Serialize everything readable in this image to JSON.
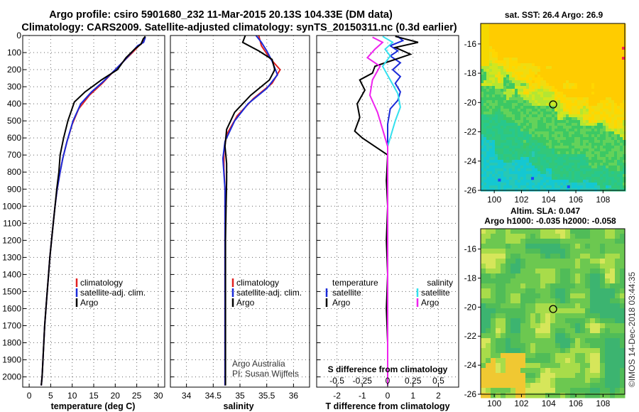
{
  "header": {
    "title_line1": "Argo profile: csiro 5901680_232 11-Mar-2015 20.13S 104.33E (DM data)",
    "title_line2": "Climatology: CARS2009. Satellite-adjusted climatology: synTS_20150311.nc (0.3d earlier)"
  },
  "colors": {
    "climatology": "#e02020",
    "satellite_adj": "#1a2ad8",
    "argo": "#000000",
    "s_satellite": "#33e0ee",
    "s_argo": "#ee22ee"
  },
  "chart_data": [
    {
      "id": "temperature",
      "type": "line",
      "xlabel": "temperature (deg C)",
      "ylabel": "",
      "xlim": [
        -1.5,
        31.5
      ],
      "ylim": [
        2060,
        0
      ],
      "xticks": [
        0,
        5,
        10,
        15,
        20,
        25,
        30
      ],
      "yticks": [
        0,
        100,
        200,
        300,
        400,
        500,
        600,
        700,
        800,
        900,
        1000,
        1100,
        1200,
        1300,
        1400,
        1500,
        1600,
        1700,
        1800,
        1900,
        2000
      ],
      "grid": true,
      "legend": [
        "climatology",
        "satellite-adj. clim.",
        "Argo"
      ],
      "legend_position": "lower-right",
      "series": [
        {
          "name": "climatology",
          "color": "#e02020",
          "points": [
            [
              27,
              10
            ],
            [
              26.5,
              40
            ],
            [
              25.5,
              60
            ],
            [
              24,
              100
            ],
            [
              22,
              150
            ],
            [
              20,
              200
            ],
            [
              17,
              280
            ],
            [
              14,
              350
            ],
            [
              11.5,
              430
            ],
            [
              10,
              520
            ],
            [
              8.8,
              620
            ],
            [
              7.8,
              720
            ],
            [
              7.2,
              800
            ],
            [
              6.5,
              900
            ],
            [
              6,
              1000
            ],
            [
              5.6,
              1100
            ],
            [
              5.2,
              1200
            ],
            [
              4.8,
              1300
            ],
            [
              4.5,
              1400
            ],
            [
              4.2,
              1500
            ],
            [
              3.9,
              1600
            ],
            [
              3.6,
              1700
            ],
            [
              3.4,
              1800
            ],
            [
              3.2,
              1900
            ],
            [
              3,
              2000
            ],
            [
              2.8,
              2050
            ]
          ]
        },
        {
          "name": "satellite-adj. clim.",
          "color": "#1a2ad8",
          "points": [
            [
              27,
              10
            ],
            [
              26.6,
              40
            ],
            [
              25.2,
              60
            ],
            [
              23.8,
              100
            ],
            [
              22,
              150
            ],
            [
              20,
              200
            ],
            [
              17.2,
              270
            ],
            [
              14.5,
              330
            ],
            [
              12,
              400
            ],
            [
              10.2,
              500
            ],
            [
              8.8,
              620
            ],
            [
              7.8,
              720
            ],
            [
              7.2,
              800
            ],
            [
              6.5,
              900
            ],
            [
              6,
              1000
            ],
            [
              5.6,
              1100
            ],
            [
              5.2,
              1200
            ],
            [
              4.8,
              1300
            ],
            [
              4.5,
              1400
            ],
            [
              4.2,
              1500
            ],
            [
              3.9,
              1600
            ],
            [
              3.6,
              1700
            ],
            [
              3.4,
              1800
            ],
            [
              3.2,
              1900
            ],
            [
              3,
              2000
            ],
            [
              2.8,
              2050
            ]
          ]
        },
        {
          "name": "Argo",
          "color": "#000000",
          "points": [
            [
              27,
              5
            ],
            [
              26.5,
              20
            ],
            [
              26,
              50
            ],
            [
              24.5,
              80
            ],
            [
              22.5,
              130
            ],
            [
              20.5,
              200
            ],
            [
              16.8,
              260
            ],
            [
              13,
              330
            ],
            [
              10.5,
              390
            ],
            [
              9,
              500
            ],
            [
              8,
              600
            ],
            [
              7.2,
              700
            ],
            [
              6.9,
              800
            ],
            [
              6.4,
              900
            ],
            [
              6,
              1000
            ],
            [
              5.6,
              1100
            ],
            [
              5.2,
              1200
            ],
            [
              4.8,
              1300
            ],
            [
              4.5,
              1400
            ],
            [
              4.2,
              1500
            ],
            [
              3.9,
              1600
            ],
            [
              3.6,
              1700
            ],
            [
              3.4,
              1800
            ],
            [
              3.2,
              1900
            ],
            [
              3,
              2000
            ],
            [
              2.8,
              2050
            ]
          ]
        }
      ]
    },
    {
      "id": "salinity",
      "type": "line",
      "xlabel": "salinity",
      "xlim": [
        33.7,
        36.3
      ],
      "ylim": [
        2060,
        0
      ],
      "xticks": [
        34,
        34.5,
        35,
        35.5,
        36
      ],
      "grid": true,
      "legend": [
        "climatology",
        "satellite-adj. clim.",
        "Argo"
      ],
      "legend_position": "lower-right",
      "series": [
        {
          "name": "climatology",
          "color": "#e02020",
          "points": [
            [
              35.35,
              0
            ],
            [
              35.4,
              60
            ],
            [
              35.55,
              130
            ],
            [
              35.75,
              200
            ],
            [
              35.6,
              280
            ],
            [
              35.25,
              370
            ],
            [
              34.95,
              470
            ],
            [
              34.75,
              580
            ],
            [
              34.7,
              680
            ],
            [
              34.7,
              780
            ],
            [
              34.72,
              900
            ],
            [
              34.72,
              1000
            ],
            [
              34.72,
              1100
            ],
            [
              34.72,
              1200
            ],
            [
              34.72,
              1300
            ],
            [
              34.72,
              1400
            ],
            [
              34.72,
              1500
            ],
            [
              34.72,
              1600
            ],
            [
              34.72,
              1700
            ],
            [
              34.72,
              1800
            ],
            [
              34.72,
              1900
            ],
            [
              34.72,
              2000
            ],
            [
              34.72,
              2050
            ]
          ]
        },
        {
          "name": "satellite-adj. clim.",
          "color": "#1a2ad8",
          "points": [
            [
              35.3,
              0
            ],
            [
              35.4,
              40
            ],
            [
              35.5,
              90
            ],
            [
              35.6,
              150
            ],
            [
              35.7,
              230
            ],
            [
              35.5,
              310
            ],
            [
              35.15,
              400
            ],
            [
              34.9,
              500
            ],
            [
              34.72,
              620
            ],
            [
              34.68,
              720
            ],
            [
              34.72,
              900
            ],
            [
              34.72,
              1000
            ],
            [
              34.72,
              1100
            ],
            [
              34.72,
              1200
            ],
            [
              34.72,
              1300
            ],
            [
              34.72,
              1400
            ],
            [
              34.72,
              1500
            ],
            [
              34.72,
              1600
            ],
            [
              34.72,
              1700
            ],
            [
              34.72,
              1800
            ],
            [
              34.72,
              1900
            ],
            [
              34.72,
              2000
            ],
            [
              34.72,
              2050
            ]
          ]
        },
        {
          "name": "Argo",
          "color": "#000000",
          "points": [
            [
              35.1,
              0
            ],
            [
              35.05,
              40
            ],
            [
              35.35,
              90
            ],
            [
              35.6,
              140
            ],
            [
              35.65,
              200
            ],
            [
              35.55,
              260
            ],
            [
              35.2,
              350
            ],
            [
              34.9,
              450
            ],
            [
              34.75,
              550
            ],
            [
              34.72,
              650
            ],
            [
              34.75,
              750
            ],
            [
              34.75,
              850
            ],
            [
              34.74,
              1000
            ],
            [
              34.73,
              1200
            ],
            [
              34.73,
              1400
            ],
            [
              34.73,
              1600
            ],
            [
              34.73,
              1800
            ],
            [
              34.73,
              2000
            ],
            [
              34.73,
              2050
            ]
          ]
        }
      ]
    },
    {
      "id": "difference",
      "type": "line",
      "xlabel": "T difference from climatology",
      "xlabel_top": "S difference from climatology",
      "xlim": [
        -2.8,
        2.8
      ],
      "ylim": [
        2060,
        0
      ],
      "xticks": [
        -2,
        -1,
        0,
        1,
        2
      ],
      "xticks_s": [
        -0.5,
        -0.25,
        0,
        0.25,
        0.5
      ],
      "xticks_s_labels": [
        "-0.5",
        "-0.25",
        "0",
        "0.25",
        "0.5"
      ],
      "grid": true,
      "legend_temperature_title": "temperature",
      "legend_temperature": [
        "satellite",
        "Argo"
      ],
      "legend_salinity_title": "salinity",
      "legend_salinity": [
        "satellite",
        "Argo"
      ],
      "series": [
        {
          "name": "temperature satellite",
          "color": "#1a2ad8",
          "points": [
            [
              0.4,
              5
            ],
            [
              0.6,
              30
            ],
            [
              0.1,
              60
            ],
            [
              0.4,
              90
            ],
            [
              0.1,
              120
            ],
            [
              0.5,
              160
            ],
            [
              0.2,
              200
            ],
            [
              0.5,
              240
            ],
            [
              0.3,
              280
            ],
            [
              0.5,
              330
            ],
            [
              0.4,
              380
            ],
            [
              0.1,
              430
            ],
            [
              0,
              520
            ],
            [
              0,
              700
            ],
            [
              0,
              900
            ],
            [
              0,
              1200
            ],
            [
              0,
              1600
            ],
            [
              0,
              2000
            ],
            [
              0,
              2050
            ]
          ]
        },
        {
          "name": "temperature Argo",
          "color": "#000000",
          "points": [
            [
              0.3,
              5
            ],
            [
              1.2,
              40
            ],
            [
              0.3,
              70
            ],
            [
              0.9,
              110
            ],
            [
              0.1,
              150
            ],
            [
              -0.5,
              180
            ],
            [
              -0.6,
              220
            ],
            [
              -1.1,
              260
            ],
            [
              -0.9,
              320
            ],
            [
              -1.2,
              400
            ],
            [
              -1.1,
              480
            ],
            [
              -1.3,
              560
            ],
            [
              -1,
              600
            ],
            [
              -0.5,
              650
            ],
            [
              0,
              700
            ],
            [
              -0.05,
              850
            ],
            [
              0,
              1000
            ],
            [
              -0.05,
              1200
            ],
            [
              0,
              1400
            ],
            [
              -0.05,
              1600
            ],
            [
              0,
              1800
            ],
            [
              0,
              2000
            ],
            [
              0,
              2050
            ]
          ]
        },
        {
          "name": "salinity satellite",
          "color": "#33e0ee",
          "points": [
            [
              -0.2,
              5
            ],
            [
              0.2,
              40
            ],
            [
              -0.1,
              80
            ],
            [
              0.1,
              120
            ],
            [
              -0.2,
              180
            ],
            [
              0.1,
              260
            ],
            [
              0.4,
              340
            ],
            [
              0.5,
              420
            ],
            [
              0.3,
              500
            ],
            [
              0,
              650
            ],
            [
              0,
              900
            ],
            [
              0,
              1200
            ],
            [
              0,
              1600
            ],
            [
              0,
              2000
            ],
            [
              0,
              2050
            ]
          ]
        },
        {
          "name": "salinity Argo",
          "color": "#ee22ee",
          "points": [
            [
              -0.6,
              10
            ],
            [
              -0.2,
              40
            ],
            [
              -0.5,
              80
            ],
            [
              -0.8,
              130
            ],
            [
              -0.3,
              180
            ],
            [
              -0.6,
              260
            ],
            [
              -0.7,
              350
            ],
            [
              -0.4,
              450
            ],
            [
              -0.2,
              550
            ],
            [
              0,
              650
            ],
            [
              0,
              900
            ],
            [
              0,
              1200
            ],
            [
              0,
              1600
            ],
            [
              0,
              2000
            ],
            [
              0,
              2050
            ]
          ]
        }
      ]
    },
    {
      "id": "sst-map",
      "type": "heatmap",
      "title": "sat. SST: 26.4 Argo: 26.9",
      "xlim": [
        99,
        109.6
      ],
      "ylim": [
        -26,
        -14.6
      ],
      "xticks": [
        100,
        102,
        104,
        106,
        108
      ],
      "yticks": [
        -16,
        -18,
        -20,
        -22,
        -24,
        -26
      ],
      "marker": {
        "lon": 104.33,
        "lat": -20.13
      }
    },
    {
      "id": "sla-map",
      "type": "heatmap",
      "title": "Altim. SLA: 0.047",
      "subtitle": "Argo h1000: -0.035 h2000: -0.058",
      "xlim": [
        99,
        109.6
      ],
      "ylim": [
        -26,
        -14.6
      ],
      "xticks": [
        100,
        102,
        104,
        106,
        108
      ],
      "yticks": [
        -16,
        -18,
        -20,
        -22,
        -24,
        -26
      ],
      "marker": {
        "lon": 104.33,
        "lat": -20.13
      }
    }
  ],
  "credits": {
    "line1": "Argo Australia",
    "line2": "PI: Susan Wijffels",
    "imos": "©IMOS 14-Dec-2018 03:44:35"
  }
}
